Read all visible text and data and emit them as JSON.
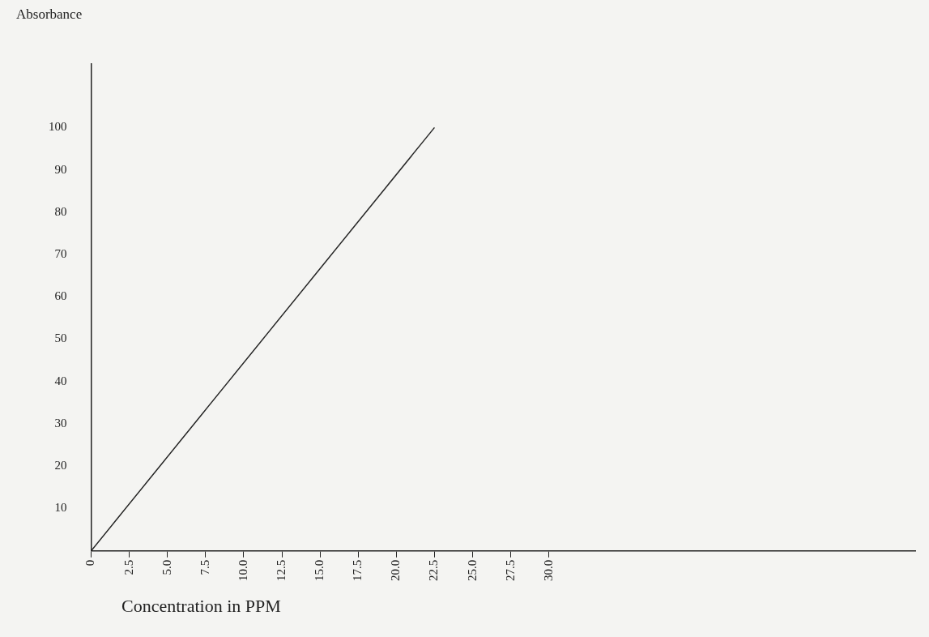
{
  "chart_data": {
    "type": "line",
    "xlabel": "Concentration in PPM",
    "ylabel": "Absorbance",
    "x": [
      0,
      22.5
    ],
    "series": [
      {
        "color": "#222222",
        "values": [
          0,
          100
        ]
      }
    ],
    "xlim": [
      0,
      54
    ],
    "ylim": [
      0,
      115
    ],
    "xticks": [
      0,
      {
        "value": 2.5,
        "label": "2.5"
      },
      {
        "value": 5,
        "label": "5.0"
      },
      {
        "value": 7.5,
        "label": "7.5"
      },
      {
        "value": 10,
        "label": "10.0"
      },
      {
        "value": 12.5,
        "label": "12.5"
      },
      {
        "value": 15,
        "label": "15.0"
      },
      {
        "value": 17.5,
        "label": "17.5"
      },
      {
        "value": 20,
        "label": "20.0"
      },
      {
        "value": 22.5,
        "label": "22.5"
      },
      {
        "value": 25,
        "label": "25.0"
      },
      {
        "value": 27.5,
        "label": "27.5"
      },
      {
        "value": 30,
        "label": "30.0"
      }
    ],
    "yticks": [
      10,
      20,
      30,
      40,
      50,
      60,
      70,
      80,
      90,
      100
    ],
    "grid": false,
    "legend": false,
    "marker": "none",
    "line_style": "solid"
  }
}
